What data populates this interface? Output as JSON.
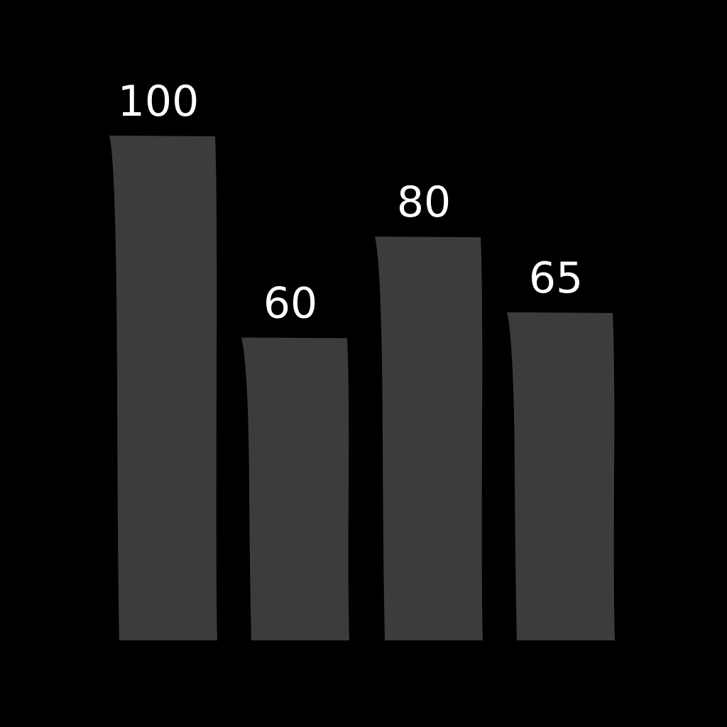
{
  "chart_data": {
    "type": "bar",
    "categories": [
      "",
      "",
      "",
      ""
    ],
    "values": [
      100,
      60,
      80,
      65
    ],
    "value_labels": [
      "100",
      "60",
      "80",
      "65"
    ],
    "title": "",
    "xlabel": "",
    "ylabel": "",
    "ylim": [
      0,
      100
    ],
    "grid": false,
    "colors": {
      "background": "#000000",
      "bar": "#3c3c3c",
      "label": "#ffffff"
    }
  }
}
